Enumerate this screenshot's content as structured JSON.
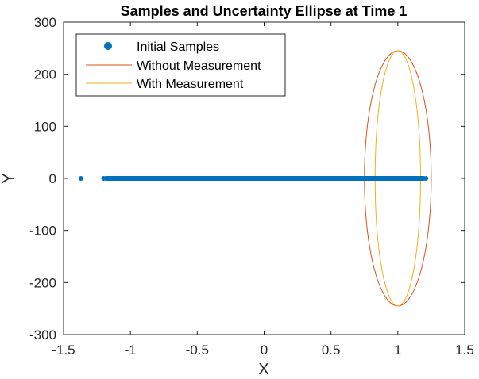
{
  "chart_data": {
    "type": "scatter",
    "title": "Samples and Uncertainty Ellipse at Time 1",
    "xlabel": "X",
    "ylabel": "Y",
    "xlim": [
      -1.5,
      1.5
    ],
    "ylim": [
      -300,
      300
    ],
    "xticks": [
      -1.5,
      -1,
      -0.5,
      0,
      0.5,
      1,
      1.5
    ],
    "yticks": [
      -300,
      -200,
      -100,
      0,
      100,
      200,
      300
    ],
    "grid": false,
    "legend_position": "top-left",
    "series": [
      {
        "name": "Initial Samples",
        "kind": "scatter",
        "color": "#0072BD",
        "x": [
          -1.37,
          -1.2,
          -1.15,
          -1.1,
          -1.05,
          -1.0,
          -0.95,
          -0.9,
          -0.85,
          -0.8,
          -0.75,
          -0.7,
          -0.65,
          -0.6,
          -0.55,
          -0.5,
          -0.45,
          -0.4,
          -0.35,
          -0.3,
          -0.25,
          -0.2,
          -0.15,
          -0.1,
          -0.05,
          0.0,
          0.05,
          0.1,
          0.15,
          0.2,
          0.25,
          0.3,
          0.35,
          0.4,
          0.45,
          0.5,
          0.55,
          0.6,
          0.65,
          0.7,
          0.75,
          0.8,
          0.85,
          0.9,
          0.95,
          1.0,
          1.05,
          1.1,
          1.15,
          1.21
        ],
        "y": [
          0,
          0,
          0,
          0,
          0,
          0,
          0,
          0,
          0,
          0,
          0,
          0,
          0,
          0,
          0,
          0,
          0,
          0,
          0,
          0,
          0,
          0,
          0,
          0,
          0,
          0,
          0,
          0,
          0,
          0,
          0,
          0,
          0,
          0,
          0,
          0,
          0,
          0,
          0,
          0,
          0,
          0,
          0,
          0,
          0,
          0,
          0,
          0,
          0,
          0
        ]
      },
      {
        "name": "Without Measurement",
        "kind": "ellipse",
        "color": "#D95319",
        "center": [
          1,
          0
        ],
        "radius_x": 0.25,
        "radius_y": 245
      },
      {
        "name": "With Measurement",
        "kind": "ellipse",
        "color": "#EDB120",
        "center": [
          1,
          0
        ],
        "radius_x": 0.17,
        "radius_y": 245
      }
    ]
  }
}
